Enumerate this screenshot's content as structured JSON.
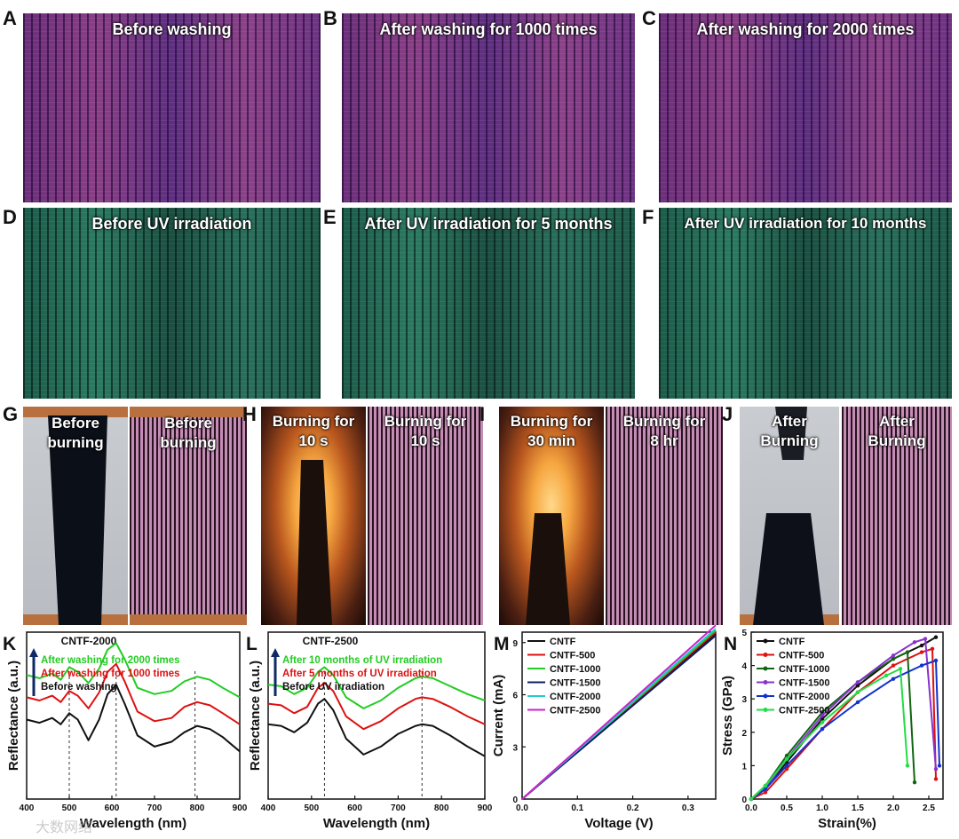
{
  "panels": {
    "A": {
      "letter": "A",
      "title": "Before washing"
    },
    "B": {
      "letter": "B",
      "title": "After washing for 1000 times"
    },
    "C": {
      "letter": "C",
      "title": "After washing for 2000 times"
    },
    "D": {
      "letter": "D",
      "title": "Before UV irradiation"
    },
    "E": {
      "letter": "E",
      "title": "After UV irradiation for 5 months"
    },
    "F": {
      "letter": "F",
      "title": "After UV irradiation for 10 months"
    },
    "G": {
      "letter": "G",
      "left_line1": "Before",
      "left_line2": "burning",
      "right_line1": "Before",
      "right_line2": "burning"
    },
    "H": {
      "letter": "H",
      "left_line1": "Burning for",
      "left_line2": "10 s",
      "right_line1": "Burning for",
      "right_line2": "10 s"
    },
    "I": {
      "letter": "I",
      "left_line1": "Burning for",
      "left_line2": "30 min",
      "right_line1": "Burning for",
      "right_line2": "8 hr"
    },
    "J": {
      "letter": "J",
      "left_line1": "After",
      "left_line2": "Burning",
      "right_line1": "After",
      "right_line2": "Burning"
    }
  },
  "colors": {
    "green": "#22cc22",
    "red": "#dd1111",
    "black": "#111111",
    "navy": "#0d2a66"
  },
  "watermark": "大数网络",
  "chart_data": [
    {
      "panel": "K",
      "type": "line",
      "title": "CNTF-2000",
      "xlabel": "Wavelength (nm)",
      "ylabel": "Reflectance (a.u.)",
      "xlim": [
        400,
        900
      ],
      "xticks": [
        400,
        500,
        600,
        700,
        800,
        900
      ],
      "arrow_note": "increasing washes",
      "legend": [
        {
          "text": "After washing for 2000 times",
          "color": "#22cc22"
        },
        {
          "text": "After washing for 1000 times",
          "color": "#dd1111"
        },
        {
          "text": "Before washing",
          "color": "#111111"
        }
      ],
      "dashed_x": [
        500,
        610,
        795
      ],
      "series": [
        {
          "name": "After washing for 2000 times",
          "color": "#22cc22",
          "x": [
            400,
            430,
            460,
            480,
            500,
            520,
            545,
            570,
            590,
            610,
            630,
            660,
            700,
            740,
            770,
            800,
            830,
            860,
            900
          ],
          "y": [
            0.78,
            0.76,
            0.79,
            0.75,
            0.83,
            0.8,
            0.73,
            0.82,
            0.94,
            0.98,
            0.88,
            0.7,
            0.66,
            0.68,
            0.74,
            0.77,
            0.75,
            0.7,
            0.64
          ]
        },
        {
          "name": "After washing for 1000 times",
          "color": "#dd1111",
          "x": [
            400,
            430,
            460,
            480,
            500,
            520,
            545,
            570,
            590,
            610,
            630,
            660,
            700,
            740,
            770,
            800,
            830,
            860,
            900
          ],
          "y": [
            0.64,
            0.62,
            0.65,
            0.61,
            0.68,
            0.65,
            0.57,
            0.67,
            0.8,
            0.85,
            0.74,
            0.55,
            0.49,
            0.51,
            0.58,
            0.61,
            0.59,
            0.54,
            0.47
          ]
        },
        {
          "name": "Before washing",
          "color": "#111111",
          "x": [
            400,
            430,
            460,
            480,
            500,
            520,
            545,
            570,
            590,
            610,
            630,
            660,
            700,
            740,
            770,
            800,
            830,
            860,
            900
          ],
          "y": [
            0.5,
            0.48,
            0.51,
            0.47,
            0.54,
            0.5,
            0.37,
            0.5,
            0.66,
            0.72,
            0.6,
            0.4,
            0.33,
            0.36,
            0.42,
            0.46,
            0.44,
            0.39,
            0.3
          ]
        }
      ]
    },
    {
      "panel": "L",
      "type": "line",
      "title": "CNTF-2500",
      "xlabel": "Wavelength (nm)",
      "ylabel": "Reflectance (a.u.)",
      "xlim": [
        400,
        900
      ],
      "xticks": [
        400,
        500,
        600,
        700,
        800,
        900
      ],
      "legend": [
        {
          "text": "After 10 months of UV irradiation",
          "color": "#22cc22"
        },
        {
          "text": "After 5 months of UV irradiation",
          "color": "#dd1111"
        },
        {
          "text": "Before UV irradiation",
          "color": "#111111"
        }
      ],
      "dashed_x": [
        530,
        755
      ],
      "series": [
        {
          "name": "After 10 months of UV irradiation",
          "color": "#22cc22",
          "x": [
            400,
            430,
            460,
            490,
            515,
            530,
            550,
            580,
            620,
            660,
            700,
            740,
            755,
            780,
            820,
            860,
            900
          ],
          "y": [
            0.72,
            0.71,
            0.66,
            0.7,
            0.8,
            0.83,
            0.78,
            0.64,
            0.57,
            0.62,
            0.7,
            0.76,
            0.77,
            0.76,
            0.71,
            0.66,
            0.62
          ]
        },
        {
          "name": "After 5 months of UV irradiation",
          "color": "#dd1111",
          "x": [
            400,
            430,
            460,
            490,
            515,
            530,
            550,
            580,
            620,
            660,
            700,
            740,
            755,
            780,
            820,
            860,
            900
          ],
          "y": [
            0.6,
            0.59,
            0.54,
            0.58,
            0.7,
            0.73,
            0.68,
            0.52,
            0.44,
            0.49,
            0.57,
            0.63,
            0.64,
            0.63,
            0.58,
            0.52,
            0.47
          ]
        },
        {
          "name": "Before UV irradiation",
          "color": "#111111",
          "x": [
            400,
            430,
            460,
            490,
            515,
            530,
            550,
            580,
            620,
            660,
            700,
            740,
            755,
            780,
            820,
            860,
            900
          ],
          "y": [
            0.47,
            0.46,
            0.42,
            0.48,
            0.6,
            0.63,
            0.56,
            0.38,
            0.28,
            0.33,
            0.41,
            0.46,
            0.47,
            0.46,
            0.4,
            0.33,
            0.27
          ]
        }
      ]
    },
    {
      "panel": "M",
      "type": "line",
      "xlabel": "Voltage (V)",
      "ylabel": "Current (mA)",
      "xlim": [
        0,
        0.35
      ],
      "ylim": [
        0,
        9.6
      ],
      "xticks": [
        0.0,
        0.1,
        0.2,
        0.3
      ],
      "yticks": [
        0,
        3,
        6,
        9
      ],
      "xtick_labels": [
        "0.0",
        "0.1",
        "0.2",
        "0.3"
      ],
      "legend": [
        {
          "text": "CNTF",
          "color": "#111111"
        },
        {
          "text": "CNTF-500",
          "color": "#dd1111"
        },
        {
          "text": "CNTF-1000",
          "color": "#22cc22"
        },
        {
          "text": "CNTF-1500",
          "color": "#0d1f66"
        },
        {
          "text": "CNTF-2000",
          "color": "#22cccc"
        },
        {
          "text": "CNTF-2500",
          "color": "#cc22cc"
        }
      ],
      "series": [
        {
          "name": "CNTF",
          "color": "#111111",
          "x": [
            0,
            0.35
          ],
          "y": [
            0,
            9.5
          ]
        },
        {
          "name": "CNTF-500",
          "color": "#dd1111",
          "x": [
            0,
            0.35
          ],
          "y": [
            0,
            9.6
          ]
        },
        {
          "name": "CNTF-1000",
          "color": "#22cc22",
          "x": [
            0,
            0.35
          ],
          "y": [
            0,
            9.7
          ]
        },
        {
          "name": "CNTF-1500",
          "color": "#0d1f66",
          "x": [
            0,
            0.35
          ],
          "y": [
            0,
            9.4
          ]
        },
        {
          "name": "CNTF-2000",
          "color": "#22cccc",
          "x": [
            0,
            0.35
          ],
          "y": [
            0,
            9.8
          ]
        },
        {
          "name": "CNTF-2500",
          "color": "#cc22cc",
          "x": [
            0,
            0.35
          ],
          "y": [
            0,
            10.0
          ]
        }
      ]
    },
    {
      "panel": "N",
      "type": "line",
      "xlabel": "Strain(%)",
      "ylabel": "Stress (GPa)",
      "xlim": [
        0,
        2.7
      ],
      "ylim": [
        0,
        5
      ],
      "xticks": [
        0.0,
        0.5,
        1.0,
        1.5,
        2.0,
        2.5
      ],
      "yticks": [
        0,
        1,
        2,
        3,
        4,
        5
      ],
      "xtick_labels": [
        "0.0",
        "0.5",
        "1.0",
        "1.5",
        "2.0",
        "2.5"
      ],
      "legend": [
        {
          "text": "CNTF",
          "color": "#111111"
        },
        {
          "text": "CNTF-500",
          "color": "#dd1111"
        },
        {
          "text": "CNTF-1000",
          "color": "#116611"
        },
        {
          "text": "CNTF-1500",
          "color": "#8833cc"
        },
        {
          "text": "CNTF-2000",
          "color": "#1133cc"
        },
        {
          "text": "CNTF-2500",
          "color": "#22dd44"
        }
      ],
      "series": [
        {
          "name": "CNTF",
          "color": "#111111",
          "x": [
            0,
            0.2,
            0.5,
            1.0,
            1.5,
            2.0,
            2.4,
            2.6
          ],
          "y": [
            0,
            0.3,
            1.1,
            2.4,
            3.4,
            4.2,
            4.6,
            4.85
          ]
        },
        {
          "name": "CNTF-500",
          "color": "#dd1111",
          "x": [
            0,
            0.2,
            0.5,
            1.0,
            1.5,
            2.0,
            2.4,
            2.55,
            2.6
          ],
          "y": [
            0,
            0.2,
            0.9,
            2.1,
            3.2,
            4.0,
            4.4,
            4.5,
            0.6
          ]
        },
        {
          "name": "CNTF-1000",
          "color": "#116611",
          "x": [
            0,
            0.2,
            0.5,
            1.0,
            1.5,
            2.0,
            2.2,
            2.3
          ],
          "y": [
            0,
            0.4,
            1.3,
            2.6,
            3.5,
            4.2,
            4.4,
            0.5
          ]
        },
        {
          "name": "CNTF-1500",
          "color": "#8833cc",
          "x": [
            0,
            0.2,
            0.5,
            1.0,
            1.5,
            2.0,
            2.3,
            2.45,
            2.6
          ],
          "y": [
            0,
            0.3,
            1.2,
            2.5,
            3.5,
            4.3,
            4.7,
            4.8,
            0.9
          ]
        },
        {
          "name": "CNTF-2000",
          "color": "#1133cc",
          "x": [
            0,
            0.2,
            0.5,
            1.0,
            1.5,
            2.0,
            2.4,
            2.6,
            2.65
          ],
          "y": [
            0,
            0.3,
            1.0,
            2.1,
            2.9,
            3.6,
            4.0,
            4.15,
            1.0
          ]
        },
        {
          "name": "CNTF-2500",
          "color": "#22dd44",
          "x": [
            0,
            0.2,
            0.5,
            1.0,
            1.5,
            1.9,
            2.1,
            2.2
          ],
          "y": [
            0,
            0.4,
            1.2,
            2.3,
            3.2,
            3.7,
            3.9,
            1.0
          ]
        }
      ]
    }
  ]
}
